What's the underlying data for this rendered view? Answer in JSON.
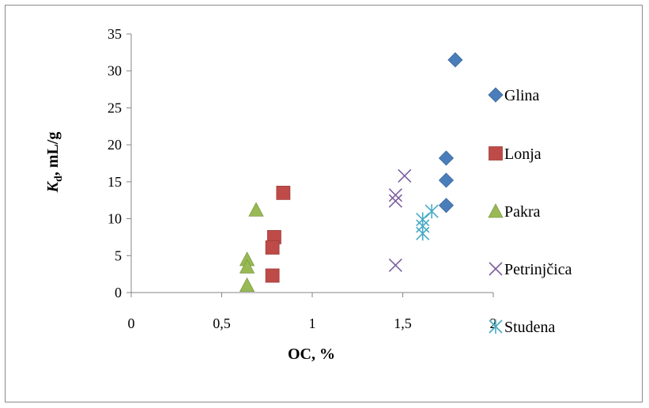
{
  "chart_data": {
    "type": "scatter",
    "title": "",
    "xlabel": "OC, %",
    "ylabel_main": "K",
    "ylabel_sub": "d",
    "ylabel_unit": ",  mL/g",
    "xlim": [
      0,
      2
    ],
    "ylim": [
      0,
      35
    ],
    "xticks": [
      0,
      0.5,
      1,
      1.5,
      2
    ],
    "xtick_labels": [
      "0",
      "0,5",
      "1",
      "1,5",
      "2"
    ],
    "yticks": [
      0,
      5,
      10,
      15,
      20,
      25,
      30,
      35
    ],
    "ytick_labels": [
      "0",
      "5",
      "10",
      "15",
      "20",
      "25",
      "30",
      "35"
    ],
    "grid": false,
    "legend_position": "right",
    "series": [
      {
        "name": "Glina",
        "marker": "diamond",
        "color": "#4a7ebb",
        "points": [
          [
            1.79,
            31.5
          ],
          [
            1.74,
            18.2
          ],
          [
            1.74,
            15.2
          ],
          [
            1.74,
            11.8
          ]
        ]
      },
      {
        "name": "Lonja",
        "marker": "square",
        "color": "#be4b48",
        "points": [
          [
            0.84,
            13.5
          ],
          [
            0.79,
            7.5
          ],
          [
            0.78,
            6.1
          ],
          [
            0.78,
            2.3
          ]
        ]
      },
      {
        "name": "Pakra",
        "marker": "triangle",
        "color": "#98b954",
        "points": [
          [
            0.69,
            11.2
          ],
          [
            0.64,
            4.5
          ],
          [
            0.64,
            3.5
          ],
          [
            0.64,
            1.0
          ]
        ]
      },
      {
        "name": "Petrinjčica",
        "marker": "x",
        "color": "#7d5fa0",
        "points": [
          [
            1.51,
            15.8
          ],
          [
            1.46,
            13.2
          ],
          [
            1.46,
            12.4
          ],
          [
            1.46,
            3.7
          ]
        ]
      },
      {
        "name": "Studena",
        "marker": "asterisk",
        "color": "#46aac5",
        "points": [
          [
            1.66,
            11.0
          ],
          [
            1.61,
            9.9
          ],
          [
            1.61,
            9.0
          ],
          [
            1.61,
            8.0
          ]
        ]
      }
    ]
  }
}
